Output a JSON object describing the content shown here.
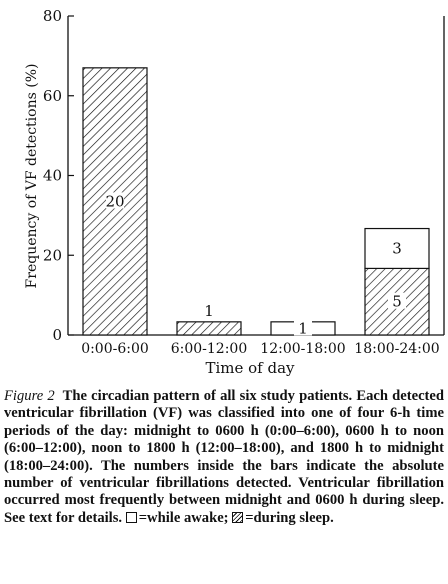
{
  "chart_data": {
    "type": "bar",
    "stacked": true,
    "ylabel": "Frequency of VF detections (%)",
    "xlabel": "Time of day",
    "ylim": [
      0,
      80
    ],
    "yticks": [
      0,
      20,
      40,
      60,
      80
    ],
    "categories": [
      "0:00-6:00",
      "6:00-12:00",
      "12:00-18:00",
      "18:00-24:00"
    ],
    "series": [
      {
        "key": "sleep",
        "pattern": "hatched",
        "values": [
          67,
          3.3,
          0,
          16.7
        ],
        "labels": [
          "20",
          "",
          "",
          "5"
        ]
      },
      {
        "key": "awake",
        "pattern": "open",
        "values": [
          0,
          0,
          3.3,
          10
        ],
        "labels": [
          "",
          "",
          "1",
          "3"
        ]
      }
    ],
    "above_bar_labels": [
      "",
      "1",
      "",
      ""
    ],
    "grid": false,
    "legend": "in caption"
  },
  "caption": {
    "figure_label": "Figure 2",
    "text_before_awake": "The circadian pattern of all six study patients. Each detected ventricular fibrillation (VF) was classified into one of four 6-h time periods of the day: midnight to 0600 h (0:00–6:00), 0600 h to noon (6:00–12:00), noon to 1800 h (12:00–18:00), and 1800 h to midnight (18:00–24:00). The numbers inside the bars indicate the absolute number of ventricular fibrillations detected. Ventricular fibrillation occurred most frequently between midnight and 0600 h during sleep. See text for details.",
    "awake_text": "=while awake;",
    "sleep_text": "=during sleep."
  }
}
